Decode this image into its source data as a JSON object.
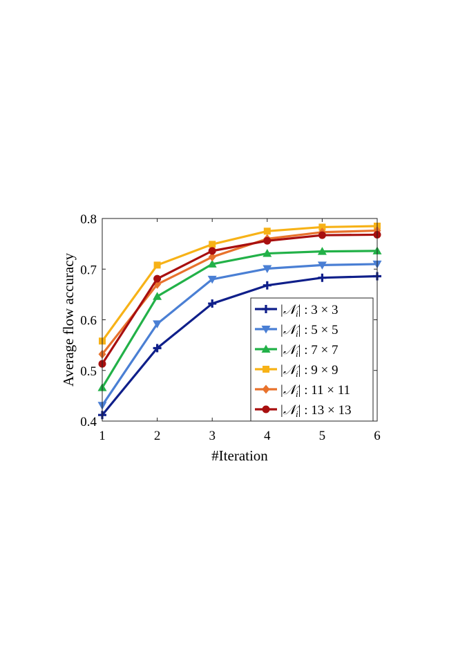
{
  "chart_data": {
    "type": "line",
    "title": "",
    "xlabel": "#Iteration",
    "ylabel": "Average flow accuracy",
    "x": [
      1,
      2,
      3,
      4,
      5,
      6
    ],
    "xlim": [
      1,
      6
    ],
    "ylim": [
      0.4,
      0.8
    ],
    "xticks": [
      "1",
      "2",
      "3",
      "4",
      "5",
      "6"
    ],
    "yticks": [
      "0.4",
      "0.5",
      "0.6",
      "0.7",
      "0.8"
    ],
    "grid": false,
    "legend_position": "bottom-right",
    "series": [
      {
        "name": "|𝒩i| : 3 × 3",
        "legend_size": "3 × 3",
        "color": "#0f1f8a",
        "marker": "plus",
        "values": [
          0.412,
          0.544,
          0.632,
          0.668,
          0.683,
          0.686
        ]
      },
      {
        "name": "|𝒩i| : 5 × 5",
        "legend_size": "5 × 5",
        "color": "#4a7fd4",
        "marker": "triangle-down",
        "values": [
          0.431,
          0.592,
          0.68,
          0.701,
          0.708,
          0.71
        ]
      },
      {
        "name": "|𝒩i| : 7 × 7",
        "legend_size": "7 × 7",
        "color": "#22b148",
        "marker": "triangle-up",
        "values": [
          0.466,
          0.646,
          0.71,
          0.731,
          0.735,
          0.736
        ]
      },
      {
        "name": "|𝒩i| : 9 × 9",
        "legend_size": "9 × 9",
        "color": "#f7b217",
        "marker": "square",
        "values": [
          0.558,
          0.708,
          0.749,
          0.775,
          0.783,
          0.785
        ]
      },
      {
        "name": "|𝒩i| : 11 × 11",
        "legend_size": "11 × 11",
        "color": "#e8722c",
        "marker": "diamond",
        "values": [
          0.532,
          0.67,
          0.724,
          0.76,
          0.773,
          0.776
        ]
      },
      {
        "name": "|𝒩i| : 13 × 13",
        "legend_size": "13 × 13",
        "color": "#a80f0f",
        "marker": "circle",
        "values": [
          0.513,
          0.681,
          0.736,
          0.756,
          0.767,
          0.768
        ]
      }
    ]
  }
}
